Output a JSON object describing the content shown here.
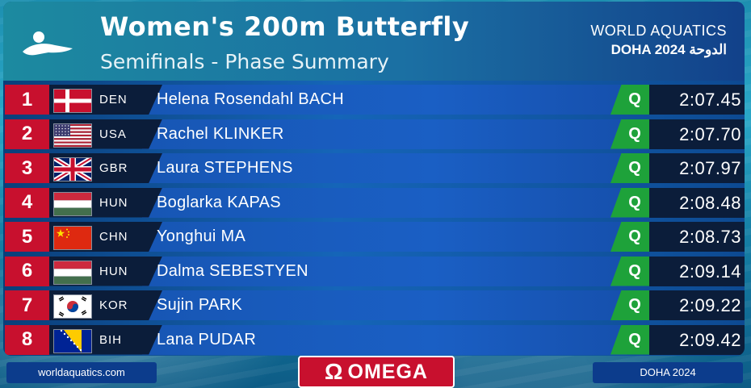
{
  "header": {
    "title": "Women's 200m Butterfly",
    "subtitle": "Semifinals - Phase Summary",
    "brand_line1": "WORLD AQUATICS",
    "brand_line2": "DOHA 2024 الدوحة"
  },
  "results": [
    {
      "rank": "1",
      "country": "DEN",
      "flag": "denmark",
      "name": "Helena Rosendahl BACH",
      "qualifier": "Q",
      "time": "2:07.45"
    },
    {
      "rank": "2",
      "country": "USA",
      "flag": "usa",
      "name": "Rachel KLINKER",
      "qualifier": "Q",
      "time": "2:07.70"
    },
    {
      "rank": "3",
      "country": "GBR",
      "flag": "uk",
      "name": "Laura STEPHENS",
      "qualifier": "Q",
      "time": "2:07.97"
    },
    {
      "rank": "4",
      "country": "HUN",
      "flag": "hungary",
      "name": "Boglarka KAPAS",
      "qualifier": "Q",
      "time": "2:08.48"
    },
    {
      "rank": "5",
      "country": "CHN",
      "flag": "china",
      "name": "Yonghui MA",
      "qualifier": "Q",
      "time": "2:08.73"
    },
    {
      "rank": "6",
      "country": "HUN",
      "flag": "hungary",
      "name": "Dalma SEBESTYEN",
      "qualifier": "Q",
      "time": "2:09.14"
    },
    {
      "rank": "7",
      "country": "KOR",
      "flag": "korea",
      "name": "Sujin PARK",
      "qualifier": "Q",
      "time": "2:09.22"
    },
    {
      "rank": "8",
      "country": "BIH",
      "flag": "bosnia",
      "name": "Lana PUDAR",
      "qualifier": "Q",
      "time": "2:09.42"
    }
  ],
  "footer": {
    "website": "worldaquatics.com",
    "sponsor_symbol": "Ω",
    "sponsor": "OMEGA",
    "event": "DOHA 2024"
  },
  "colors": {
    "rank_red": "#c8102e",
    "qualifier_green": "#1ea23a",
    "separator_gold": "#e0a62a"
  }
}
